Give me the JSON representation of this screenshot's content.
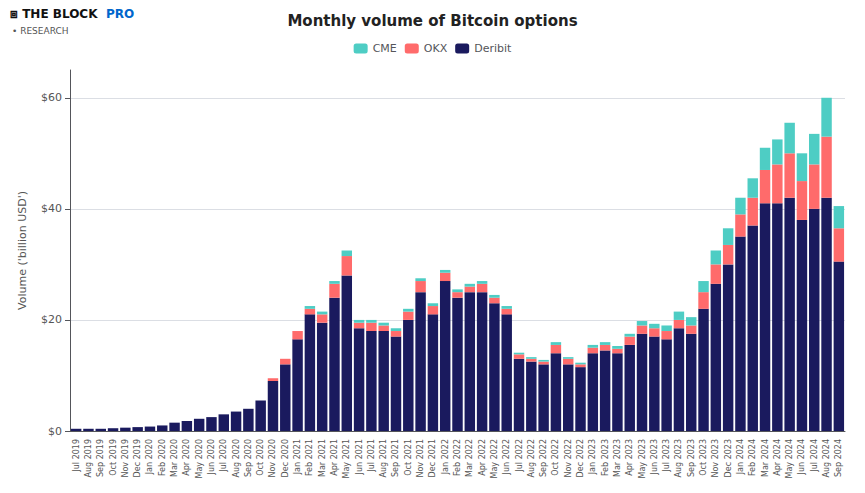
{
  "chart_data": {
    "type": "bar",
    "stacked": true,
    "title": "Monthly volume of Bitcoin options",
    "ylabel": "Volume ('billion USD')",
    "annotations": [
      {
        "text": "⧈ THE BLOCK",
        "color": "#111111"
      },
      {
        "text": "PRO",
        "color": "#0066cc"
      },
      {
        "text": "• RESEARCH",
        "color": "#555555"
      }
    ],
    "ylim": [
      0,
      65
    ],
    "yticks": [
      {
        "value": 0,
        "label": "$0"
      },
      {
        "value": 20,
        "label": "$20"
      },
      {
        "value": 40,
        "label": "$40"
      },
      {
        "value": 60,
        "label": "$60"
      }
    ],
    "grid": true,
    "legend": "top",
    "categories": [
      "Jul 2019",
      "Aug 2019",
      "Sep 2019",
      "Oct 2019",
      "Nov 2019",
      "Dec 2019",
      "Jan 2020",
      "Feb 2020",
      "Mar 2020",
      "Apr 2020",
      "May 2020",
      "Jun 2020",
      "Jul 2020",
      "Aug 2020",
      "Sep 2020",
      "Oct 2020",
      "Nov 2020",
      "Dec 2020",
      "Jan 2021",
      "Feb 2021",
      "Mar 2021",
      "Apr 2021",
      "May 2021",
      "Jun 2021",
      "Jul 2021",
      "Aug 2021",
      "Sep 2021",
      "Oct 2021",
      "Nov 2021",
      "Dec 2021",
      "Jan 2022",
      "Feb 2022",
      "Mar 2022",
      "Apr 2022",
      "May 2022",
      "Jun 2022",
      "Jul 2022",
      "Aug 2022",
      "Sep 2022",
      "Oct 2022",
      "Nov 2022",
      "Dec 2022",
      "Jan 2023",
      "Feb 2023",
      "Mar 2023",
      "Apr 2023",
      "May 2023",
      "Jun 2023",
      "Jul 2023",
      "Aug 2023",
      "Sep 2023",
      "Oct 2023",
      "Nov 2023",
      "Dec 2023",
      "Jan 2024",
      "Feb 2024",
      "Mar 2024",
      "Apr 2024",
      "May 2024",
      "Jun 2024",
      "Jul 2024",
      "Aug 2024",
      "Sep 2024"
    ],
    "series": [
      {
        "name": "Deribit",
        "color": "#1a1a5e",
        "values": [
          0.4,
          0.4,
          0.4,
          0.5,
          0.6,
          0.7,
          0.8,
          1.0,
          1.5,
          1.8,
          2.2,
          2.5,
          3.0,
          3.5,
          4.0,
          5.5,
          9.0,
          12.0,
          16.5,
          21.0,
          19.5,
          24.0,
          28.0,
          18.5,
          18.0,
          18.0,
          17.0,
          20.0,
          25.0,
          21.0,
          27.0,
          24.0,
          25.0,
          25.0,
          23.0,
          21.0,
          13.0,
          12.5,
          12.0,
          14.0,
          12.0,
          11.5,
          14.0,
          14.5,
          14.0,
          15.5,
          17.5,
          17.0,
          16.5,
          18.5,
          17.5,
          22.0,
          26.5,
          30.0,
          35.0,
          37.0,
          41.0,
          41.0,
          42.0,
          38.0,
          40.0,
          42.0,
          30.5
        ]
      },
      {
        "name": "OKX",
        "color": "#ff6b6b",
        "values": [
          0.0,
          0.0,
          0.0,
          0.0,
          0.0,
          0.0,
          0.0,
          0.0,
          0.0,
          0.0,
          0.0,
          0.0,
          0.0,
          0.0,
          0.0,
          0.0,
          0.5,
          1.0,
          1.5,
          1.0,
          1.5,
          2.5,
          3.5,
          1.0,
          1.5,
          1.0,
          1.0,
          1.5,
          2.0,
          1.5,
          1.5,
          1.0,
          1.0,
          1.5,
          1.0,
          1.0,
          0.8,
          0.5,
          0.5,
          1.5,
          1.0,
          0.5,
          1.0,
          1.0,
          0.8,
          1.5,
          1.5,
          1.5,
          1.5,
          1.5,
          1.5,
          3.0,
          3.5,
          3.5,
          4.0,
          5.0,
          6.0,
          7.0,
          8.0,
          7.0,
          8.0,
          11.0,
          6.0
        ]
      },
      {
        "name": "CME",
        "color": "#4ecdc4",
        "values": [
          0.0,
          0.0,
          0.0,
          0.0,
          0.0,
          0.0,
          0.0,
          0.0,
          0.0,
          0.0,
          0.0,
          0.0,
          0.0,
          0.0,
          0.0,
          0.0,
          0.0,
          0.0,
          0.0,
          0.5,
          0.5,
          0.5,
          1.0,
          0.5,
          0.5,
          0.5,
          0.5,
          0.5,
          0.5,
          0.5,
          0.5,
          0.5,
          0.5,
          0.5,
          0.5,
          0.5,
          0.3,
          0.3,
          0.3,
          0.5,
          0.3,
          0.3,
          0.5,
          0.5,
          0.5,
          0.5,
          0.8,
          0.8,
          1.0,
          1.5,
          1.5,
          2.0,
          2.5,
          3.0,
          3.0,
          3.5,
          4.0,
          4.5,
          5.5,
          5.0,
          5.5,
          7.0,
          4.0
        ]
      }
    ]
  }
}
